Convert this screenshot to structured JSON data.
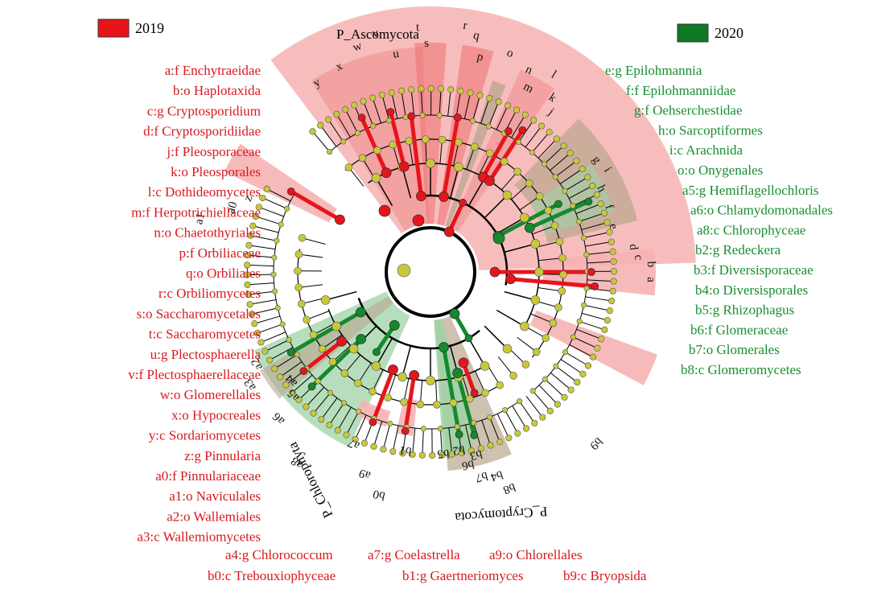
{
  "legend": [
    {
      "label": "2019",
      "color": "#e8141b"
    },
    {
      "label": "2020",
      "color": "#0f7a25"
    }
  ],
  "colors": {
    "red_node": "#e8141b",
    "green_node": "#138a2e",
    "yellow_node": "#c8c83a",
    "red_shade": "#f6b2b2",
    "green_shade": "#9fd3a6",
    "brown_shade": "#b9a68f",
    "red_text": "#d7191f",
    "green_text": "#178f2f"
  },
  "phylum_labels": [
    "P_Ascomycota",
    "P_Chlorophyta",
    "P_Cryptomycota"
  ],
  "clade_letters": {
    "ascomycota_arc": [
      "y",
      "x",
      "w",
      "v",
      "u",
      "t",
      "s",
      "r",
      "q",
      "p",
      "o",
      "n",
      "m",
      "l",
      "k",
      "j"
    ],
    "right_arc": [
      "g",
      "i",
      "h",
      "f",
      "e",
      "d",
      "c",
      "b",
      "a",
      "b9"
    ],
    "left_arc": [
      "a1",
      "a0",
      "z",
      "a3",
      "a2",
      "a5",
      "a4",
      "a6",
      "a8",
      "a7",
      "a9",
      "b0",
      "b1",
      "b5",
      "b2",
      "b6",
      "b3",
      "b7",
      "b4",
      "b8"
    ]
  },
  "left_legend": [
    "a:f Enchytraeidae",
    "b:o Haplotaxida",
    "c:g Cryptosporidium",
    "d:f Cryptosporidiidae",
    "j:f Pleosporaceae",
    "k:o Pleosporales",
    "l:c Dothideomycetes",
    "m:f Herpotrichiellaceae",
    "n:o Chaetothyriales",
    "p:f Orbiliaceae",
    "q:o Orbiliales",
    "r:c Orbiliomycetes",
    "s:o Saccharomycetales",
    "t:c Saccharomycetes",
    "u:g Plectosphaerella",
    "v:f Plectosphaerellaceae",
    "w:o Glomerellales",
    "x:o Hypocreales",
    "y:c Sordariomycetes",
    "z:g Pinnularia",
    "a0:f Pinnulariaceae",
    "a1:o Naviculales",
    "a2:o Wallemiales",
    "a3:c Wallemiomycetes"
  ],
  "bottom_legend": [
    "a4:g Chlorococcum",
    "a7:g Coelastrella",
    "a9:o Chlorellales",
    "b0:c  Trebouxiophyceae",
    "b1:g Gaertneriomyces",
    "b9:c Bryopsida"
  ],
  "right_legend": [
    "e:g Epilohmannia",
    "f:f Epilohmanniidae",
    "g:f Oehserchestidae",
    "h:o Sarcoptiformes",
    "i:c Arachnida",
    "o:o Onygenales",
    "a5:g Hemiflagellochloris",
    "a6:o Chlamydomonadales",
    "a8:c Chlorophyceae",
    "b2:g Redeckera",
    "b3:f Diversisporaceae",
    "b4:o Diversisporales",
    "b5:g Rhizophagus",
    "b6:f Glomeraceae",
    "b7:o Glomerales",
    "b8:c Glomeromycetes"
  ]
}
